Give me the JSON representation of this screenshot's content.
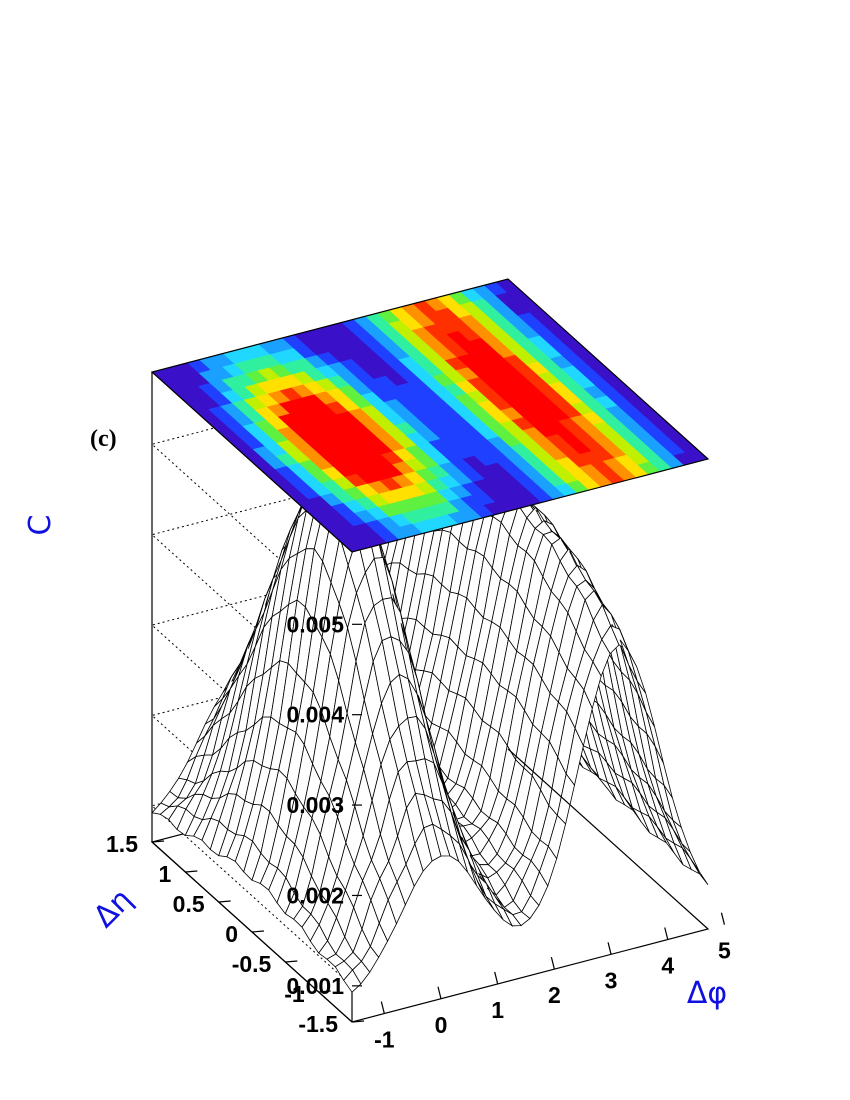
{
  "panel_label": "(c)",
  "chart_data": {
    "type": "surface3d",
    "xlabel": "Δφ",
    "ylabel": "Δη",
    "zlabel": "C",
    "x_ticks": [
      "-1",
      "0",
      "1",
      "2",
      "3",
      "4",
      "5"
    ],
    "y_ticks": [
      "-1.5",
      "-1",
      "-0.5",
      "0",
      "0.5",
      "1",
      "1.5"
    ],
    "z_ticks": [
      "0.001",
      "0.002",
      "0.003",
      "0.004",
      "0.005"
    ],
    "xlim": [
      -1.57,
      4.71
    ],
    "ylim": [
      -1.5,
      1.5
    ],
    "zlim": [
      0.0006,
      0.0058
    ],
    "surface": {
      "baseline": 0.0008,
      "near_side_peak": {
        "dphi": 0.0,
        "deta": 0.0,
        "height": 0.005,
        "deta_width": 0.85
      },
      "ridge": {
        "dphi": 0.0,
        "height": 0.0018
      },
      "away_side_peak": {
        "dphi": 3.14,
        "height": 0.0047
      },
      "phi_width": 0.72
    },
    "top_projection": {
      "type": "contour",
      "colormap": "rainbow",
      "grid": true
    }
  }
}
